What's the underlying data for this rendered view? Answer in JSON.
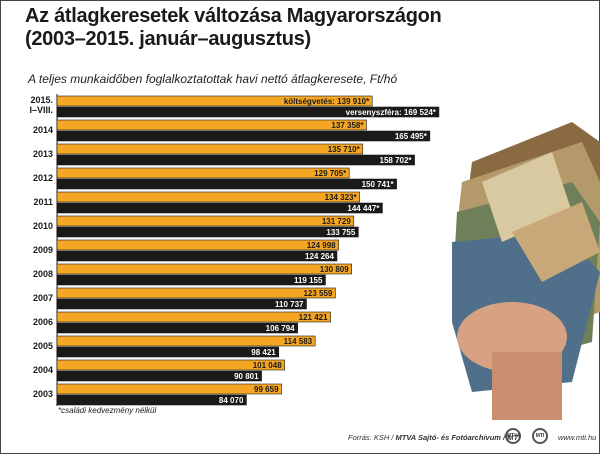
{
  "title_line1": "Az átlagkeresetek változása Magyarországon",
  "title_line2": "(2003–2015. január–augusztus)",
  "subtitle": "A teljes munkaidőben foglalkoztatottak havi nettó átlagkeresete, Ft/hó",
  "note": "*családi kedvezmény nélkül",
  "footer_source": "Forrás: KSH / ",
  "footer_agency": "MTVA Sajtó- és Fotóarchívum / MTI",
  "footer_website": "www.mti.hu",
  "logo_left": "MTVA",
  "logo_right": "MTI",
  "colors": {
    "orange": "#f5a623",
    "dark": "#1a1a1a",
    "bar_bg": "#ffffff"
  },
  "chart_data": {
    "type": "bar",
    "orientation": "horizontal",
    "categories": [
      "2015.\nI–VIII.",
      "2014",
      "2013",
      "2012",
      "2011",
      "2010",
      "2009",
      "2008",
      "2007",
      "2006",
      "2005",
      "2004",
      "2003"
    ],
    "series": [
      {
        "color": "#f5a623",
        "values": [
          139910,
          137358,
          135710,
          129705,
          134323,
          131729,
          124998,
          130809,
          123559,
          121421,
          114583,
          101048,
          99659
        ],
        "labels": [
          "költségvetés: 139 910*",
          "137 358*",
          "135 710*",
          "129 705*",
          "134 323*",
          "131 729",
          "124 998",
          "130 809",
          "123 559",
          "121 421",
          "114 583",
          "101 048",
          "99 659"
        ]
      },
      {
        "color": "#1a1a1a",
        "values": [
          169524,
          165495,
          158702,
          150741,
          144447,
          133755,
          124264,
          119155,
          110737,
          106794,
          98421,
          90801,
          84070
        ],
        "labels": [
          "versenyszféra: 169 524*",
          "165 495*",
          "158 702*",
          "150 741*",
          "144 447*",
          "133 755",
          "124 264",
          "119 155",
          "110 737",
          "106 794",
          "98 421",
          "90 801",
          "84 070"
        ]
      }
    ]
  }
}
